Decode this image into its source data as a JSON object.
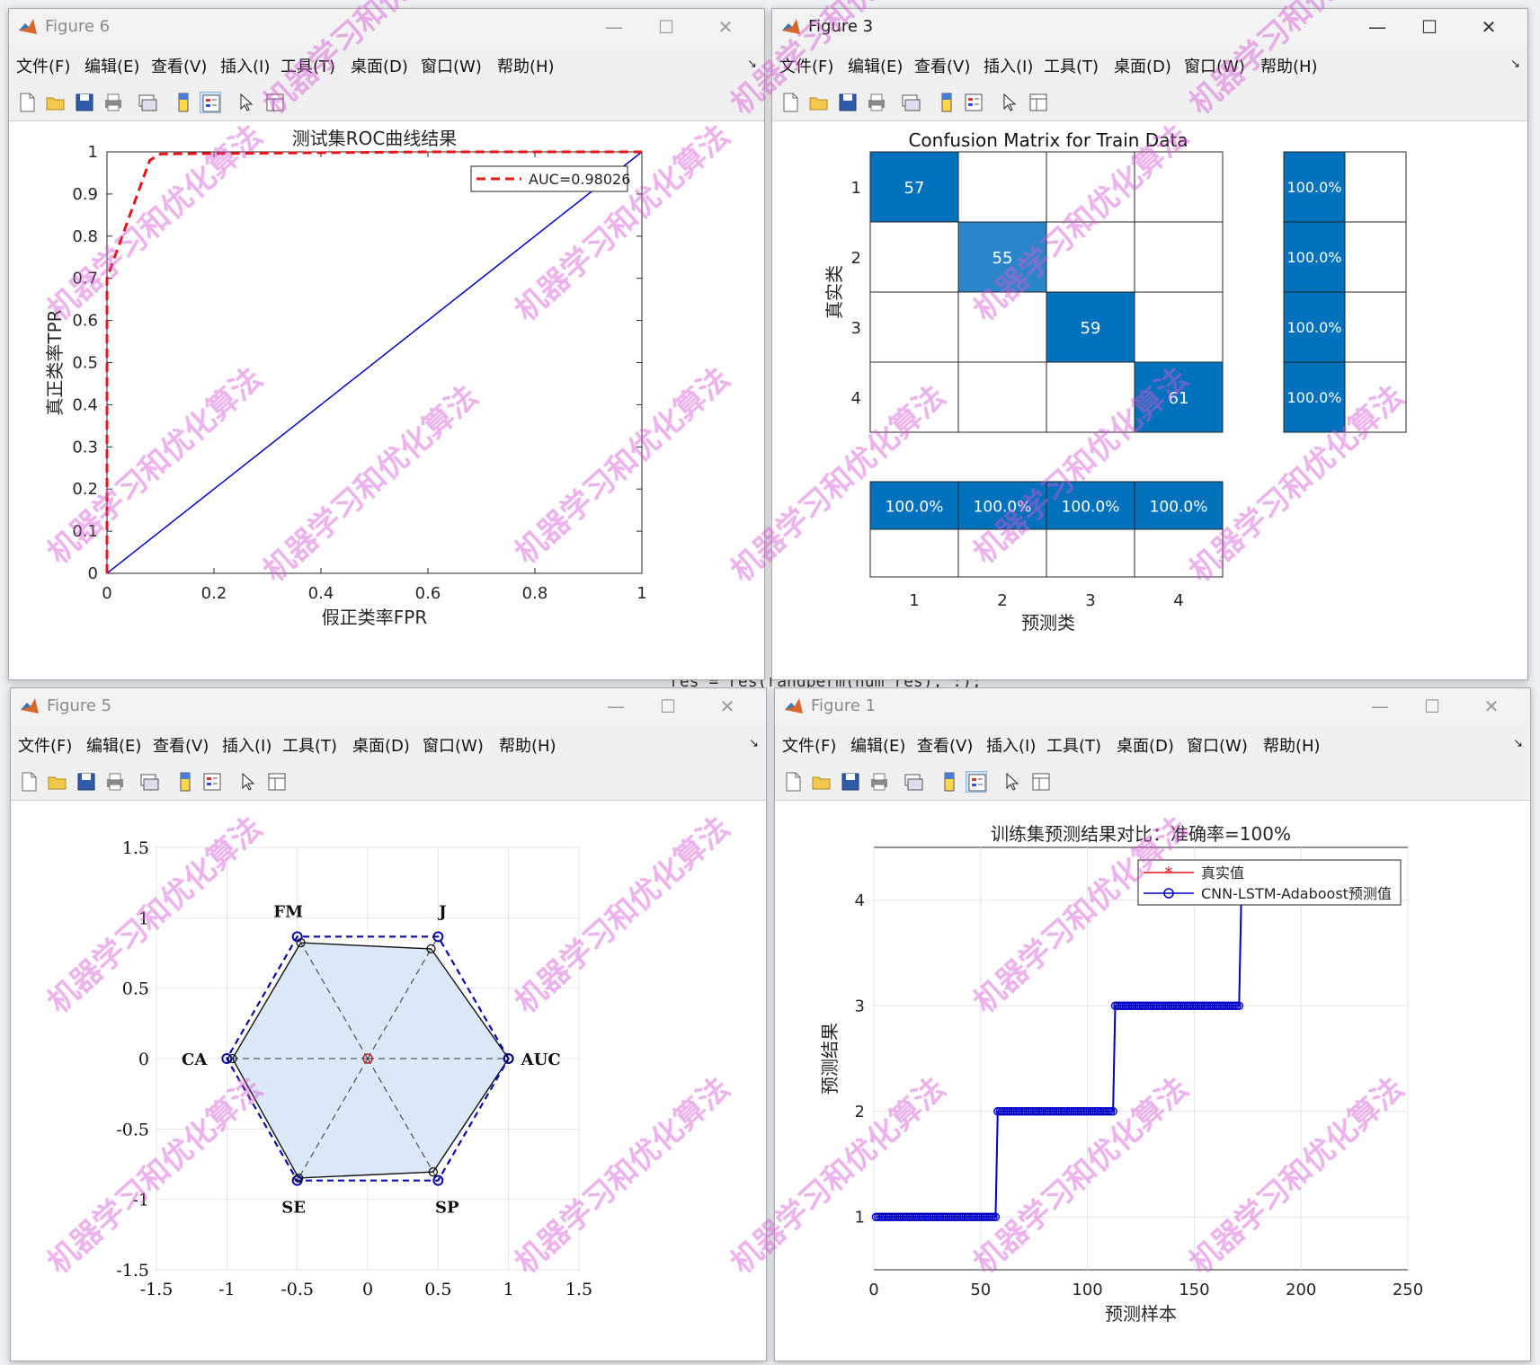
{
  "watermark": "机器学习和优化算法",
  "menus": [
    "文件(F)",
    "编辑(E)",
    "查看(V)",
    "插入(I)",
    "工具(T)",
    "桌面(D)",
    "窗口(W)",
    "帮助(H)"
  ],
  "icons": [
    "new-figure-icon",
    "open-file-icon",
    "save-icon",
    "print-icon",
    "link-plot-icon",
    "colorbar-icon",
    "legend-icon",
    "pointer-icon",
    "property-inspector-icon"
  ],
  "background_code": "res = res(randperm(num_res), :);",
  "fig6": {
    "title": "Figure 6",
    "chart_data": {
      "type": "line",
      "title": "测试集ROC曲线结果",
      "xlabel": "假正类率FPR",
      "ylabel": "真正类率TPR",
      "xlim": [
        0,
        1
      ],
      "ylim": [
        0,
        1
      ],
      "xticks": [
        "0",
        "0.2",
        "0.4",
        "0.6",
        "0.8",
        "1"
      ],
      "yticks": [
        "0",
        "0.1",
        "0.2",
        "0.3",
        "0.4",
        "0.5",
        "0.6",
        "0.7",
        "0.8",
        "0.9",
        "1"
      ],
      "legend_position": "top-right",
      "series": [
        {
          "name": "AUC=0.98026",
          "style": "dashed",
          "color": "#e8141a",
          "x": [
            0,
            0,
            0.08,
            0.1,
            0.6,
            1
          ],
          "y": [
            0,
            0.7,
            0.98,
            0.995,
            1.0,
            1.0
          ]
        },
        {
          "style": "solid",
          "color": "#0000c8",
          "x": [
            0,
            1
          ],
          "y": [
            0,
            1
          ]
        }
      ]
    }
  },
  "fig3": {
    "title": "Figure 3",
    "chart_data": {
      "type": "heatmap",
      "title": "Confusion Matrix for Train Data",
      "xlabel": "预测类",
      "ylabel": "真实类",
      "classes": [
        "1",
        "2",
        "3",
        "4"
      ],
      "matrix": [
        [
          57,
          0,
          0,
          0
        ],
        [
          0,
          55,
          0,
          0
        ],
        [
          0,
          0,
          59,
          0
        ],
        [
          0,
          0,
          0,
          61
        ]
      ],
      "row_summary": [
        "100.0%",
        "100.0%",
        "100.0%",
        "100.0%"
      ],
      "col_summary": [
        "100.0%",
        "100.0%",
        "100.0%",
        "100.0%"
      ],
      "colors": {
        "strong": "#0072bd",
        "medium": "#2a86c8"
      }
    }
  },
  "fig5": {
    "title": "Figure 5",
    "chart_data": {
      "type": "scatter",
      "subtype": "radar",
      "xlim": [
        -1.5,
        1.5
      ],
      "ylim": [
        -1.5,
        1.5
      ],
      "xticks": [
        "-1.5",
        "-1",
        "-0.5",
        "0",
        "0.5",
        "1",
        "1.5"
      ],
      "yticks": [
        "1.5",
        "1",
        "0.5",
        "0",
        "-0.5",
        "-1",
        "-1.5"
      ],
      "axes": [
        "AUC",
        "J",
        "FM",
        "CA",
        "SE",
        "SP"
      ],
      "values": [
        1.0,
        0.9,
        0.95,
        0.96,
        0.98,
        0.93
      ],
      "reference": 1.0,
      "fill": "#dae8f8"
    }
  },
  "fig1": {
    "title": "Figure 1",
    "chart_data": {
      "type": "line",
      "title": "训练集预测结果对比：准确率=100%",
      "xlabel": "预测样本",
      "ylabel": "预测结果",
      "xlim": [
        0,
        250
      ],
      "ylim": [
        0.5,
        4.5
      ],
      "xticks": [
        "0",
        "50",
        "100",
        "150",
        "200",
        "250"
      ],
      "yticks": [
        "1",
        "2",
        "3",
        "4"
      ],
      "legend_position": "top-right",
      "series": [
        {
          "name": "真实值",
          "color": "#e8141a",
          "marker": "*"
        },
        {
          "name": "CNN-LSTM-Adaboost预测值",
          "color": "#0000c8",
          "marker": "o"
        }
      ],
      "segments": [
        {
          "class": 1,
          "x_start": 1,
          "x_end": 57
        },
        {
          "class": 2,
          "x_start": 58,
          "x_end": 112
        },
        {
          "class": 3,
          "x_start": 113,
          "x_end": 171
        },
        {
          "class": 4,
          "x_start": 172,
          "x_end": 232
        }
      ]
    }
  }
}
